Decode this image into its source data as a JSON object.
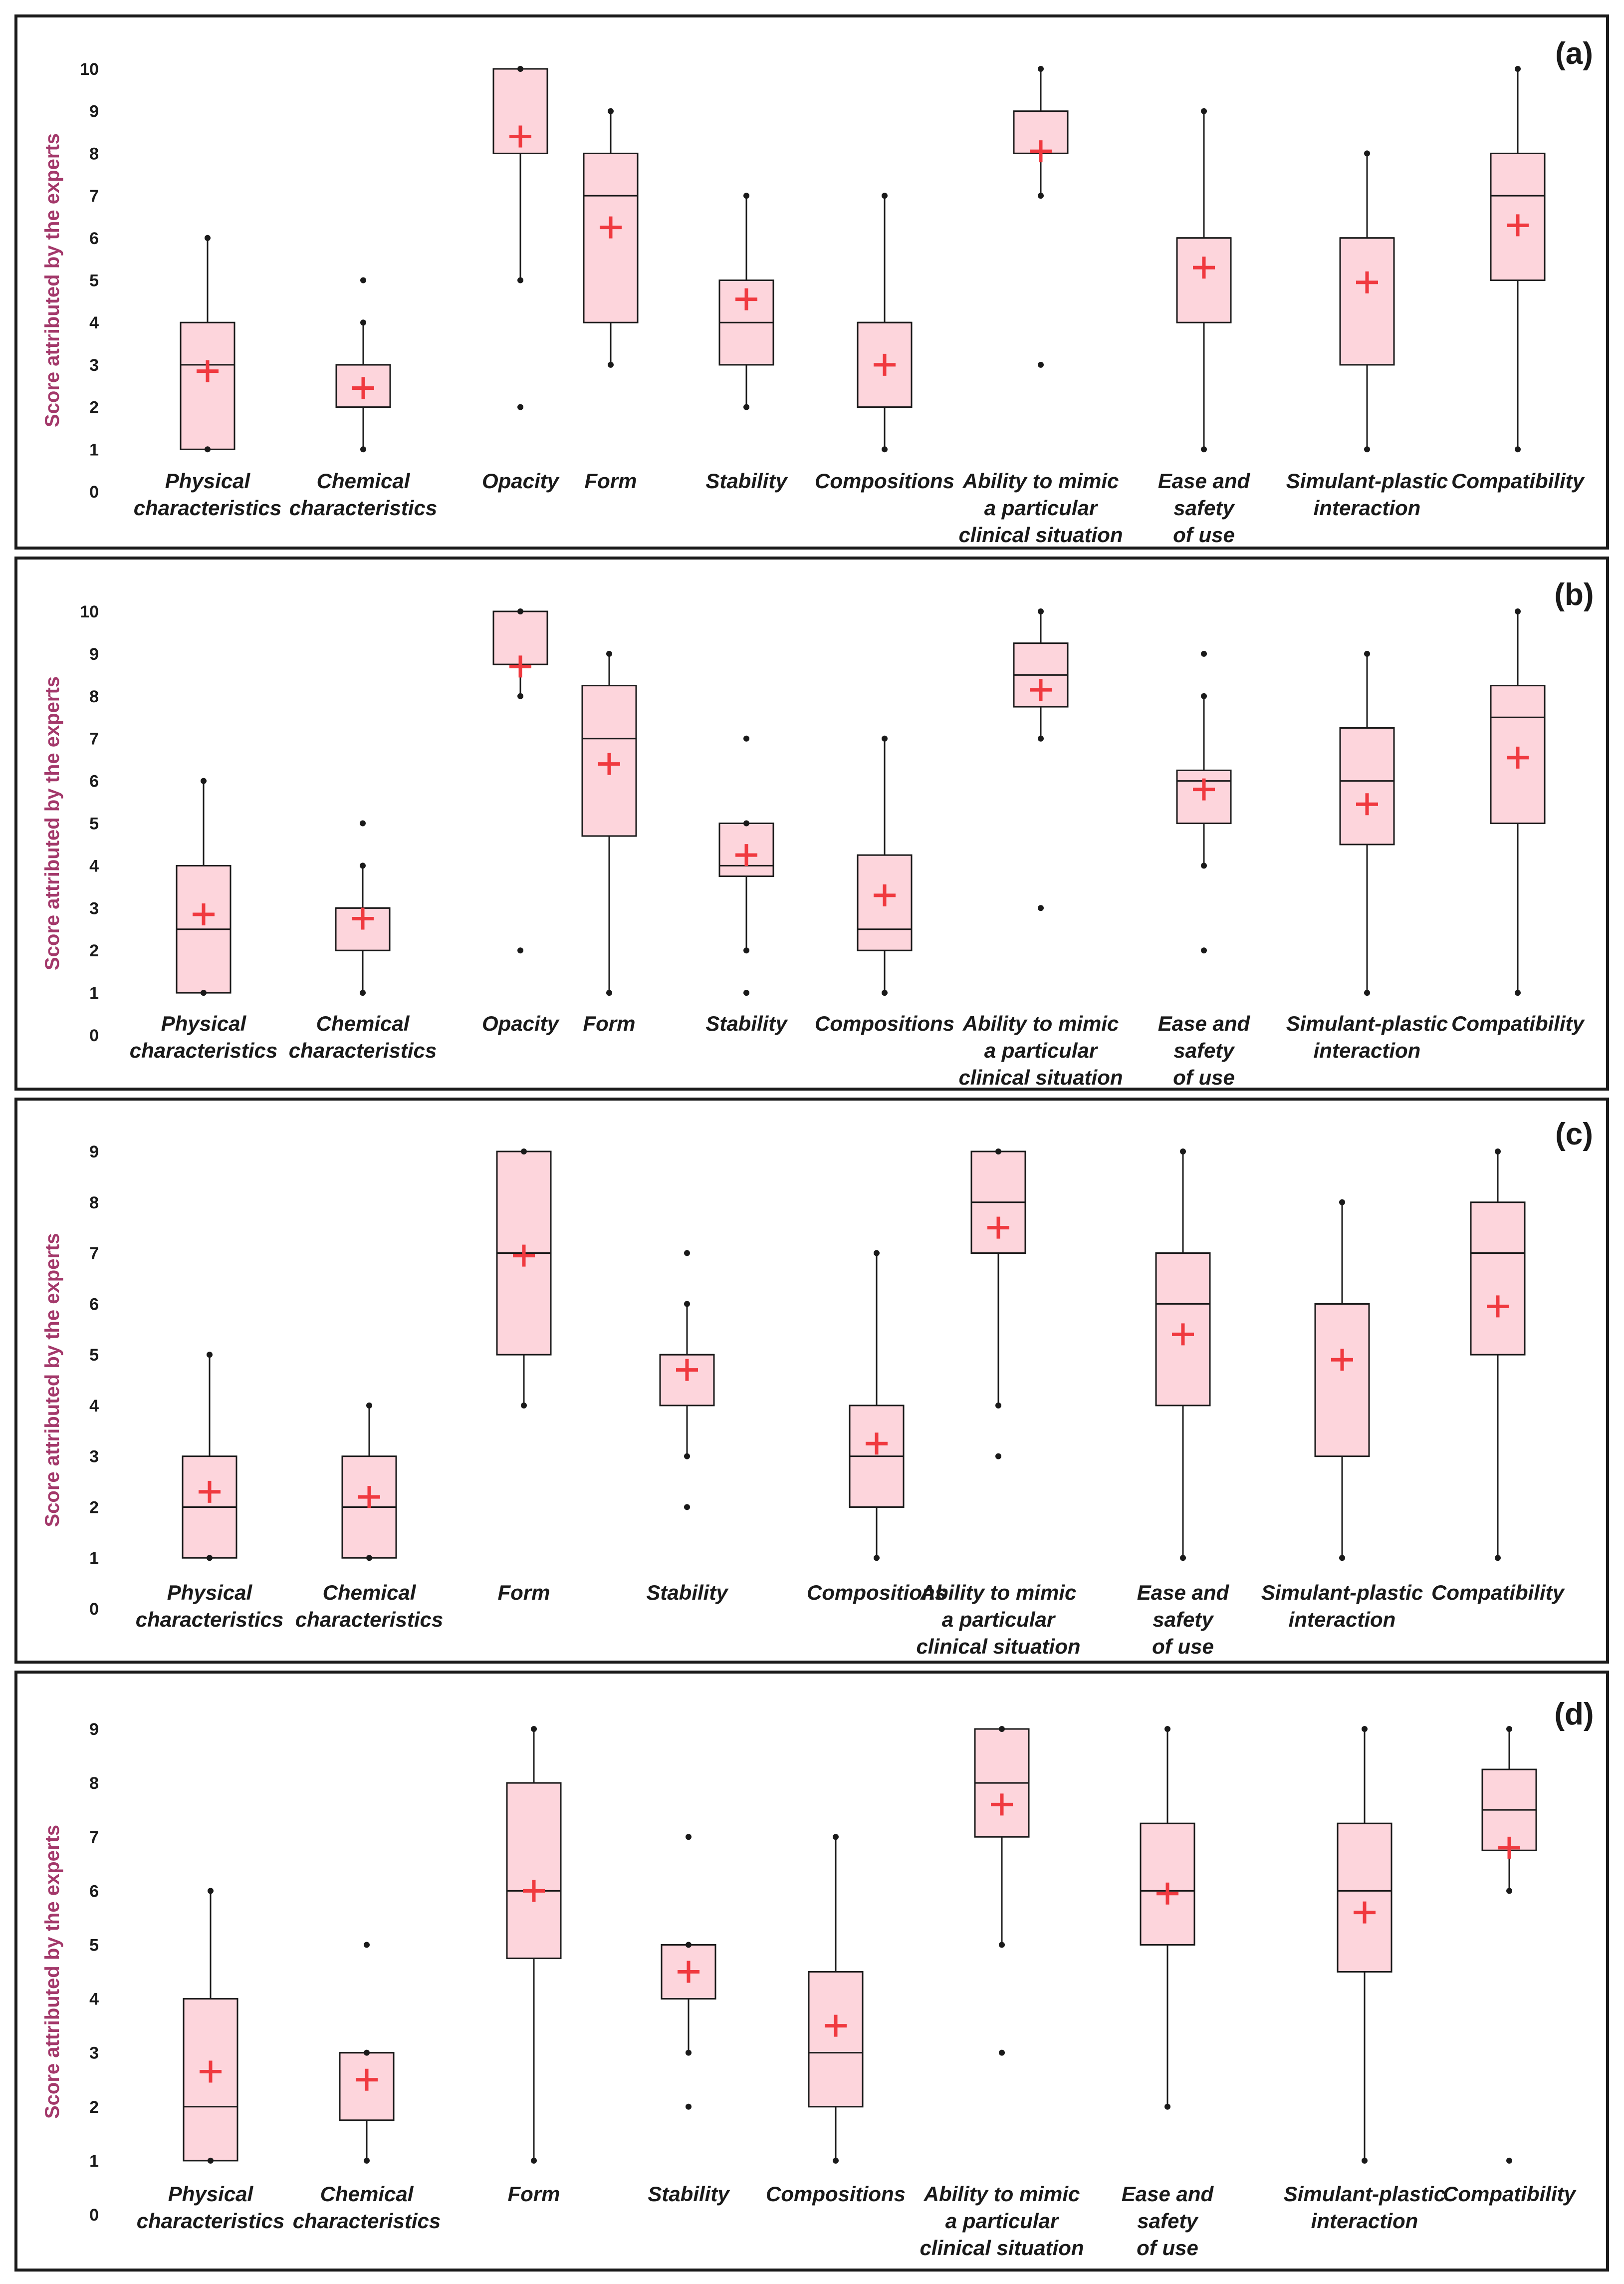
{
  "chart_data": [
    {
      "type": "box",
      "panel_label": "(a)",
      "ylabel": "Score attributed by the experts",
      "ylim": [
        0,
        10
      ],
      "yticks": [
        0,
        1,
        2,
        3,
        4,
        5,
        6,
        7,
        8,
        9,
        10
      ],
      "series": [
        {
          "name": [
            "Physical",
            "characteristics"
          ],
          "min": 1,
          "q1": 1,
          "median": 3,
          "q3": 4,
          "max": 6,
          "mean": 2.85,
          "outliers": []
        },
        {
          "name": [
            "Chemical",
            "characteristics"
          ],
          "min": 1,
          "q1": 2,
          "median": 3,
          "q3": 3,
          "max": 4,
          "mean": 2.45,
          "outliers": [
            5
          ]
        },
        {
          "name": [
            "Opacity"
          ],
          "min": 5,
          "q1": 8,
          "median": 10,
          "q3": 10,
          "max": 10,
          "mean": 8.4,
          "outliers": [
            2
          ]
        },
        {
          "name": [
            "Form"
          ],
          "min": 3,
          "q1": 4,
          "median": 7,
          "q3": 8,
          "max": 9,
          "mean": 6.25,
          "outliers": []
        },
        {
          "name": [
            "Stability"
          ],
          "min": 2,
          "q1": 3,
          "median": 4,
          "q3": 5,
          "max": 7,
          "mean": 4.55,
          "outliers": []
        },
        {
          "name": [
            "Compositions"
          ],
          "min": 1,
          "q1": 2,
          "median": 4,
          "q3": 4,
          "max": 7,
          "mean": 3.0,
          "outliers": []
        },
        {
          "name": [
            "Ability to mimic",
            "a particular",
            "clinical situation"
          ],
          "min": 7,
          "q1": 8,
          "median": 8,
          "q3": 9,
          "max": 10,
          "mean": 8.05,
          "outliers": [
            3
          ]
        },
        {
          "name": [
            "Ease and",
            "safety",
            "of use"
          ],
          "min": 1,
          "q1": 4,
          "median": 6,
          "q3": 6,
          "max": 9,
          "mean": 5.3,
          "outliers": []
        },
        {
          "name": [
            "Simulant-plastic",
            "interaction"
          ],
          "min": 1,
          "q1": 3,
          "median": 6,
          "q3": 6,
          "max": 8,
          "mean": 4.95,
          "outliers": []
        },
        {
          "name": [
            "Compatibility"
          ],
          "min": 1,
          "q1": 5,
          "median": 7,
          "q3": 8,
          "max": 10,
          "mean": 6.3,
          "outliers": []
        }
      ]
    },
    {
      "type": "box",
      "panel_label": "(b)",
      "ylabel": "Score attributed by the experts",
      "ylim": [
        0,
        10
      ],
      "yticks": [
        0,
        1,
        2,
        3,
        4,
        5,
        6,
        7,
        8,
        9,
        10
      ],
      "series": [
        {
          "name": [
            "Physical",
            "characteristics"
          ],
          "min": 1,
          "q1": 1,
          "median": 2.5,
          "q3": 4,
          "max": 6,
          "mean": 2.85,
          "outliers": []
        },
        {
          "name": [
            "Chemical",
            "characteristics"
          ],
          "min": 1,
          "q1": 2,
          "median": 3,
          "q3": 3,
          "max": 4,
          "mean": 2.75,
          "outliers": [
            5
          ]
        },
        {
          "name": [
            "Opacity"
          ],
          "min": 8,
          "q1": 8.75,
          "median": 10,
          "q3": 10,
          "max": 10,
          "mean": 8.7,
          "outliers": [
            2
          ]
        },
        {
          "name": [
            "Form"
          ],
          "min": 1,
          "q1": 4.7,
          "median": 7,
          "q3": 8.25,
          "max": 9,
          "mean": 6.4,
          "outliers": []
        },
        {
          "name": [
            "Stability"
          ],
          "min": 2,
          "q1": 3.75,
          "median": 4,
          "q3": 5,
          "max": 5,
          "mean": 4.25,
          "outliers": [
            1,
            7
          ]
        },
        {
          "name": [
            "Compositions"
          ],
          "min": 1,
          "q1": 2,
          "median": 2.5,
          "q3": 4.25,
          "max": 7,
          "mean": 3.3,
          "outliers": []
        },
        {
          "name": [
            "Ability to mimic",
            "a particular",
            "clinical situation"
          ],
          "min": 7,
          "q1": 7.75,
          "median": 8.5,
          "q3": 9.25,
          "max": 10,
          "mean": 8.15,
          "outliers": [
            3
          ]
        },
        {
          "name": [
            "Ease and",
            "safety",
            "of use"
          ],
          "min": 4,
          "q1": 5,
          "median": 6,
          "q3": 6.25,
          "max": 8,
          "mean": 5.8,
          "outliers": [
            2,
            9
          ]
        },
        {
          "name": [
            "Simulant-plastic",
            "interaction"
          ],
          "min": 1,
          "q1": 4.5,
          "median": 6,
          "q3": 7.25,
          "max": 9,
          "mean": 5.45,
          "outliers": []
        },
        {
          "name": [
            "Compatibility"
          ],
          "min": 1,
          "q1": 5,
          "median": 7.5,
          "q3": 8.25,
          "max": 10,
          "mean": 6.55,
          "outliers": []
        }
      ]
    },
    {
      "type": "box",
      "panel_label": "(c)",
      "ylabel": "Score attributed by the experts",
      "ylim": [
        0,
        9
      ],
      "yticks": [
        0,
        1,
        2,
        3,
        4,
        5,
        6,
        7,
        8,
        9
      ],
      "series": [
        {
          "name": [
            "Physical",
            "characteristics"
          ],
          "min": 1,
          "q1": 1,
          "median": 2,
          "q3": 3,
          "max": 5,
          "mean": 2.3,
          "outliers": []
        },
        {
          "name": [
            "Chemical",
            "characteristics"
          ],
          "min": 1,
          "q1": 1,
          "median": 2,
          "q3": 3,
          "max": 4,
          "mean": 2.2,
          "outliers": []
        },
        {
          "name": [
            "Form"
          ],
          "min": 4,
          "q1": 5,
          "median": 7,
          "q3": 9,
          "max": 9,
          "mean": 6.95,
          "outliers": []
        },
        {
          "name": [
            "Stability"
          ],
          "min": 3,
          "q1": 4,
          "median": 5,
          "q3": 5,
          "max": 6,
          "mean": 4.7,
          "outliers": [
            2,
            7
          ]
        },
        {
          "name": [
            "Compositions"
          ],
          "min": 1,
          "q1": 2,
          "median": 3,
          "q3": 4,
          "max": 7,
          "mean": 3.25,
          "outliers": []
        },
        {
          "name": [
            "Ability to mimic",
            "a particular",
            "clinical situation"
          ],
          "min": 4,
          "q1": 7,
          "median": 8,
          "q3": 9,
          "max": 9,
          "mean": 7.5,
          "outliers": [
            3
          ]
        },
        {
          "name": [
            "Ease and",
            "safety",
            "of use"
          ],
          "min": 1,
          "q1": 4,
          "median": 6,
          "q3": 7,
          "max": 9,
          "mean": 5.4,
          "outliers": []
        },
        {
          "name": [
            "Simulant-plastic",
            "interaction"
          ],
          "min": 1,
          "q1": 3,
          "median": 6,
          "q3": 6,
          "max": 8,
          "mean": 4.9,
          "outliers": []
        },
        {
          "name": [
            "Compatibility"
          ],
          "min": 1,
          "q1": 5,
          "median": 7,
          "q3": 8,
          "max": 9,
          "mean": 5.95,
          "outliers": []
        }
      ]
    },
    {
      "type": "box",
      "panel_label": "(d)",
      "ylabel": "Score attributed by the experts",
      "ylim": [
        0,
        9
      ],
      "yticks": [
        0,
        1,
        2,
        3,
        4,
        5,
        6,
        7,
        8,
        9
      ],
      "series": [
        {
          "name": [
            "Physical",
            "characteristics"
          ],
          "min": 1,
          "q1": 1,
          "median": 2,
          "q3": 4,
          "max": 6,
          "mean": 2.65,
          "outliers": []
        },
        {
          "name": [
            "Chemical",
            "characteristics"
          ],
          "min": 1,
          "q1": 1.75,
          "median": 3,
          "q3": 3,
          "max": 3,
          "mean": 2.5,
          "outliers": [
            5
          ]
        },
        {
          "name": [
            "Form"
          ],
          "min": 1,
          "q1": 4.75,
          "median": 6,
          "q3": 8,
          "max": 9,
          "mean": 6.0,
          "outliers": []
        },
        {
          "name": [
            "Stability"
          ],
          "min": 3,
          "q1": 4,
          "median": 5,
          "q3": 5,
          "max": 5,
          "mean": 4.5,
          "outliers": [
            2,
            7
          ]
        },
        {
          "name": [
            "Compositions"
          ],
          "min": 1,
          "q1": 2,
          "median": 3,
          "q3": 4.5,
          "max": 7,
          "mean": 3.5,
          "outliers": []
        },
        {
          "name": [
            "Ability to mimic",
            "a particular",
            "clinical situation"
          ],
          "min": 5,
          "q1": 7,
          "median": 8,
          "q3": 9,
          "max": 9,
          "mean": 7.6,
          "outliers": [
            3
          ]
        },
        {
          "name": [
            "Ease and",
            "safety",
            "of use"
          ],
          "min": 2,
          "q1": 5,
          "median": 6,
          "q3": 7.25,
          "max": 9,
          "mean": 5.95,
          "outliers": []
        },
        {
          "name": [
            "Simulant-plastic",
            "interaction"
          ],
          "min": 1,
          "q1": 4.5,
          "median": 6,
          "q3": 7.25,
          "max": 9,
          "mean": 5.6,
          "outliers": []
        },
        {
          "name": [
            "Compatibility"
          ],
          "min": 6,
          "q1": 6.75,
          "median": 7.5,
          "q3": 8.25,
          "max": 9,
          "mean": 6.8,
          "outliers": [
            1
          ]
        }
      ]
    }
  ]
}
